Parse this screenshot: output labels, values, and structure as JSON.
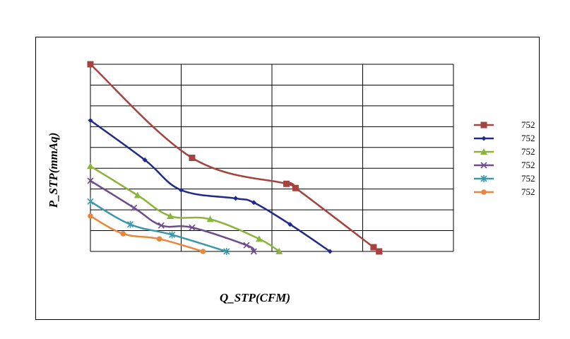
{
  "chart_data": {
    "type": "line",
    "title": "",
    "xlabel": "Q_STP(CFM)",
    "ylabel": "P_STP(mmAq)",
    "xlim": [
      0,
      200
    ],
    "ylim": [
      0,
      9
    ],
    "y_gridlines": 9,
    "x_gridlines": 4,
    "grid": true,
    "legend_position": "right",
    "series": [
      {
        "name": "752",
        "color": "#A5433F",
        "marker": "square",
        "x": [
          0,
          56,
          108,
          113,
          156,
          159
        ],
        "y": [
          9.0,
          4.5,
          3.25,
          3.05,
          0.2,
          0.0
        ]
      },
      {
        "name": "752",
        "color": "#1F2A8C",
        "marker": "diamond",
        "x": [
          0,
          30,
          50,
          80,
          90,
          110,
          132
        ],
        "y": [
          6.3,
          4.4,
          2.95,
          2.55,
          2.35,
          1.3,
          0.0
        ]
      },
      {
        "name": "752",
        "color": "#8CB43C",
        "marker": "triangle",
        "x": [
          0,
          26,
          44,
          66,
          93,
          104
        ],
        "y": [
          4.1,
          2.7,
          1.7,
          1.55,
          0.6,
          0.0
        ]
      },
      {
        "name": "752",
        "color": "#6E4A8E",
        "marker": "x",
        "x": [
          0,
          24,
          39,
          56,
          86,
          90
        ],
        "y": [
          3.4,
          2.1,
          1.25,
          1.15,
          0.3,
          0.0
        ]
      },
      {
        "name": "752",
        "color": "#3A98AC",
        "marker": "asterisk",
        "x": [
          0,
          22,
          45,
          75
        ],
        "y": [
          2.4,
          1.3,
          0.8,
          0.0
        ]
      },
      {
        "name": "752",
        "color": "#E8873A",
        "marker": "circle",
        "x": [
          0,
          18,
          38,
          62
        ],
        "y": [
          1.7,
          0.85,
          0.6,
          0.0
        ]
      }
    ]
  }
}
